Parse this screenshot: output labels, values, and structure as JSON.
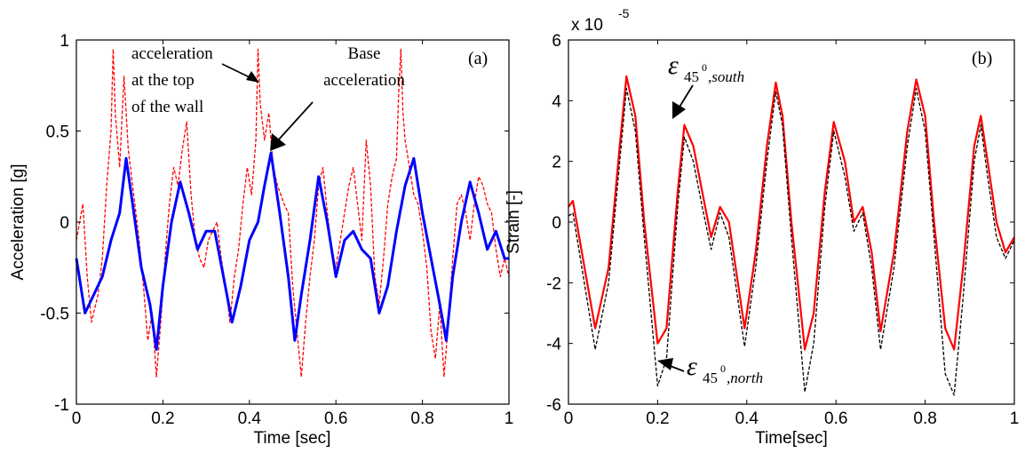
{
  "chart_data": [
    {
      "type": "line",
      "panel_label": "(a)",
      "xlabel": "Time [sec]",
      "ylabel": "Acceleration [g]",
      "xlim": [
        0,
        1
      ],
      "ylim": [
        -1,
        1
      ],
      "xticks": [
        "0",
        "0.2",
        "0.4",
        "0.6",
        "0.8",
        "1"
      ],
      "yticks": [
        "1",
        "0.5",
        "0",
        "-0.5",
        "-1"
      ],
      "grid": false,
      "annotations": {
        "top_line1": "acceleration",
        "top_line2": "at the top",
        "top_line3": "of the wall",
        "base_line1": "Base",
        "base_line2": "acceleration"
      },
      "series": [
        {
          "style": "dashed",
          "color": "#ff0000",
          "x": [
            0,
            0.015,
            0.025,
            0.035,
            0.05,
            0.06,
            0.07,
            0.08,
            0.085,
            0.09,
            0.1,
            0.11,
            0.12,
            0.13,
            0.145,
            0.155,
            0.165,
            0.175,
            0.185,
            0.195,
            0.205,
            0.215,
            0.225,
            0.235,
            0.245,
            0.255,
            0.265,
            0.275,
            0.285,
            0.295,
            0.305,
            0.315,
            0.325,
            0.335,
            0.345,
            0.355,
            0.365,
            0.375,
            0.385,
            0.395,
            0.405,
            0.415,
            0.42,
            0.425,
            0.435,
            0.445,
            0.455,
            0.465,
            0.48,
            0.49,
            0.5,
            0.51,
            0.52,
            0.53,
            0.54,
            0.55,
            0.56,
            0.57,
            0.58,
            0.59,
            0.6,
            0.61,
            0.62,
            0.63,
            0.64,
            0.65,
            0.66,
            0.67,
            0.68,
            0.69,
            0.7,
            0.71,
            0.72,
            0.73,
            0.74,
            0.745,
            0.75,
            0.755,
            0.76,
            0.77,
            0.78,
            0.79,
            0.8,
            0.81,
            0.82,
            0.83,
            0.84,
            0.85,
            0.86,
            0.87,
            0.88,
            0.89,
            0.9,
            0.91,
            0.92,
            0.93,
            0.94,
            0.95,
            0.96,
            0.97,
            0.98,
            0.99,
            1
          ],
          "y": [
            -0.1,
            0.1,
            -0.3,
            -0.55,
            -0.4,
            -0.2,
            0.2,
            0.5,
            0.95,
            0.6,
            0.3,
            0.8,
            0.4,
            0.2,
            -0.1,
            -0.35,
            -0.65,
            -0.5,
            -0.85,
            -0.55,
            -0.2,
            0.1,
            0.3,
            0.2,
            0.4,
            0.55,
            0.15,
            -0.1,
            -0.2,
            -0.25,
            -0.1,
            -0.05,
            0.0,
            -0.2,
            -0.35,
            -0.55,
            -0.3,
            -0.15,
            0.1,
            0.3,
            0.15,
            0.45,
            0.95,
            0.65,
            0.45,
            0.6,
            0.3,
            0.2,
            0.1,
            0.05,
            -0.35,
            -0.6,
            -0.85,
            -0.55,
            -0.3,
            -0.1,
            0.2,
            0.3,
            0.05,
            -0.15,
            -0.25,
            -0.1,
            0.05,
            0.2,
            0.3,
            0.1,
            -0.1,
            0.45,
            0.2,
            -0.3,
            -0.45,
            -0.2,
            0.1,
            0.25,
            0.35,
            0.7,
            0.95,
            0.6,
            0.45,
            0.3,
            0.15,
            0.1,
            -0.05,
            -0.25,
            -0.6,
            -0.75,
            -0.45,
            -0.85,
            -0.55,
            -0.2,
            0.1,
            0.15,
            0.05,
            -0.1,
            0.1,
            0.25,
            0.2,
            0.1,
            0.05,
            -0.15,
            -0.3,
            -0.2,
            -0.3
          ]
        },
        {
          "style": "solid",
          "color": "#0000ff",
          "x": [
            0,
            0.02,
            0.04,
            0.06,
            0.08,
            0.1,
            0.115,
            0.13,
            0.15,
            0.17,
            0.185,
            0.2,
            0.22,
            0.24,
            0.26,
            0.28,
            0.3,
            0.32,
            0.34,
            0.36,
            0.38,
            0.4,
            0.42,
            0.435,
            0.45,
            0.47,
            0.49,
            0.505,
            0.52,
            0.54,
            0.56,
            0.58,
            0.6,
            0.62,
            0.64,
            0.66,
            0.68,
            0.7,
            0.72,
            0.74,
            0.76,
            0.78,
            0.8,
            0.82,
            0.84,
            0.855,
            0.87,
            0.89,
            0.91,
            0.93,
            0.95,
            0.97,
            0.99,
            1
          ],
          "y": [
            -0.2,
            -0.5,
            -0.4,
            -0.3,
            -0.1,
            0.05,
            0.35,
            0.1,
            -0.25,
            -0.45,
            -0.7,
            -0.35,
            0.0,
            0.22,
            0.05,
            -0.15,
            -0.05,
            -0.05,
            -0.3,
            -0.55,
            -0.35,
            -0.1,
            0.0,
            0.2,
            0.38,
            0.05,
            -0.3,
            -0.65,
            -0.4,
            -0.1,
            0.25,
            0.0,
            -0.3,
            -0.1,
            -0.05,
            -0.15,
            -0.2,
            -0.5,
            -0.35,
            -0.05,
            0.2,
            0.35,
            0.05,
            -0.2,
            -0.45,
            -0.65,
            -0.3,
            0.0,
            0.22,
            0.05,
            -0.15,
            -0.05,
            -0.2,
            -0.2
          ]
        }
      ]
    },
    {
      "type": "line",
      "panel_label": "(b)",
      "xlabel": "Time[sec]",
      "ylabel": "Strain [-]",
      "scale_label": "x 10",
      "scale_exponent": "-5",
      "xlim": [
        0,
        1
      ],
      "ylim": [
        -6,
        6
      ],
      "xticks": [
        "0",
        "0.2",
        "0.4",
        "0.6",
        "0.8",
        "1"
      ],
      "yticks": [
        "6",
        "4",
        "2",
        "0",
        "-2",
        "-4",
        "-6"
      ],
      "grid": false,
      "annotations": {
        "south_symbol": "ε",
        "south_sub": "45",
        "south_sup": "0",
        "south_tail": ",south",
        "north_symbol": "ε",
        "north_sub": "45",
        "north_sup": "0",
        "north_tail": ",north"
      },
      "series": [
        {
          "style": "solid",
          "color": "#ff0000",
          "x": [
            0,
            0.01,
            0.03,
            0.06,
            0.09,
            0.115,
            0.13,
            0.15,
            0.17,
            0.2,
            0.22,
            0.245,
            0.26,
            0.28,
            0.3,
            0.32,
            0.34,
            0.36,
            0.395,
            0.42,
            0.445,
            0.465,
            0.48,
            0.5,
            0.53,
            0.55,
            0.575,
            0.595,
            0.62,
            0.64,
            0.66,
            0.68,
            0.7,
            0.73,
            0.76,
            0.78,
            0.8,
            0.82,
            0.845,
            0.865,
            0.885,
            0.91,
            0.925,
            0.94,
            0.96,
            0.98,
            1
          ],
          "y": [
            0.5,
            0.7,
            -1.0,
            -3.5,
            -1.5,
            2.5,
            4.8,
            3.5,
            0.0,
            -4.0,
            -3.5,
            1.0,
            3.2,
            2.5,
            1.0,
            -0.5,
            0.5,
            0.0,
            -3.5,
            -1.0,
            2.5,
            4.6,
            3.5,
            0.0,
            -4.2,
            -3.0,
            1.0,
            3.3,
            2.0,
            0.0,
            0.5,
            -1.0,
            -3.6,
            -1.0,
            3.0,
            4.7,
            3.5,
            0.0,
            -3.5,
            -4.2,
            -1.5,
            2.5,
            3.5,
            2.0,
            0.0,
            -1.0,
            -0.5
          ]
        },
        {
          "style": "dashed",
          "color": "#000000",
          "x": [
            0,
            0.01,
            0.03,
            0.06,
            0.09,
            0.115,
            0.13,
            0.15,
            0.17,
            0.2,
            0.22,
            0.245,
            0.26,
            0.28,
            0.3,
            0.32,
            0.34,
            0.36,
            0.395,
            0.42,
            0.445,
            0.465,
            0.48,
            0.5,
            0.53,
            0.55,
            0.575,
            0.595,
            0.62,
            0.64,
            0.66,
            0.68,
            0.7,
            0.73,
            0.76,
            0.78,
            0.8,
            0.82,
            0.845,
            0.865,
            0.885,
            0.91,
            0.925,
            0.94,
            0.96,
            0.98,
            1
          ],
          "y": [
            0.2,
            0.3,
            -1.5,
            -4.2,
            -2.0,
            2.0,
            4.4,
            3.0,
            -0.5,
            -5.4,
            -4.5,
            0.5,
            2.8,
            2.0,
            0.5,
            -0.9,
            0.3,
            -0.5,
            -4.1,
            -1.5,
            2.0,
            4.3,
            3.2,
            -0.5,
            -5.6,
            -4.0,
            0.5,
            3.0,
            1.5,
            -0.3,
            0.3,
            -1.5,
            -4.2,
            -1.5,
            2.5,
            4.4,
            3.0,
            -0.5,
            -5.0,
            -5.7,
            -2.5,
            2.0,
            3.2,
            1.5,
            -0.5,
            -1.2,
            -0.6
          ]
        }
      ]
    }
  ]
}
